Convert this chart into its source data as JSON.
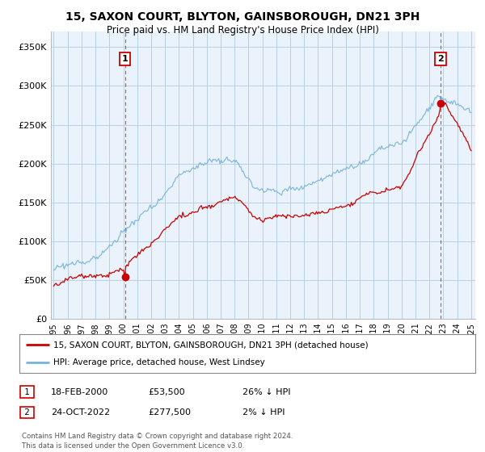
{
  "title": "15, SAXON COURT, BLYTON, GAINSBOROUGH, DN21 3PH",
  "subtitle": "Price paid vs. HM Land Registry's House Price Index (HPI)",
  "xlim_start": 1994.8,
  "xlim_end": 2025.3,
  "ylim": [
    0,
    370000
  ],
  "yticks": [
    0,
    50000,
    100000,
    150000,
    200000,
    250000,
    300000,
    350000
  ],
  "ytick_labels": [
    "£0",
    "£50K",
    "£100K",
    "£150K",
    "£200K",
    "£250K",
    "£300K",
    "£350K"
  ],
  "sale1_date": 2000.12,
  "sale1_price": 53500,
  "sale1_label": "1",
  "sale2_date": 2022.8,
  "sale2_price": 277500,
  "sale2_label": "2",
  "hpi_color": "#7ab3d8",
  "sale_color": "#cc0000",
  "vline_color": "#cc0000",
  "grid_color": "#b8cfe8",
  "bg_plot": "#eaf3fb",
  "legend_label_red": "15, SAXON COURT, BLYTON, GAINSBOROUGH, DN21 3PH (detached house)",
  "legend_label_blue": "HPI: Average price, detached house, West Lindsey",
  "footer": "Contains HM Land Registry data © Crown copyright and database right 2024.\nThis data is licensed under the Open Government Licence v3.0.",
  "background_color": "#ffffff"
}
